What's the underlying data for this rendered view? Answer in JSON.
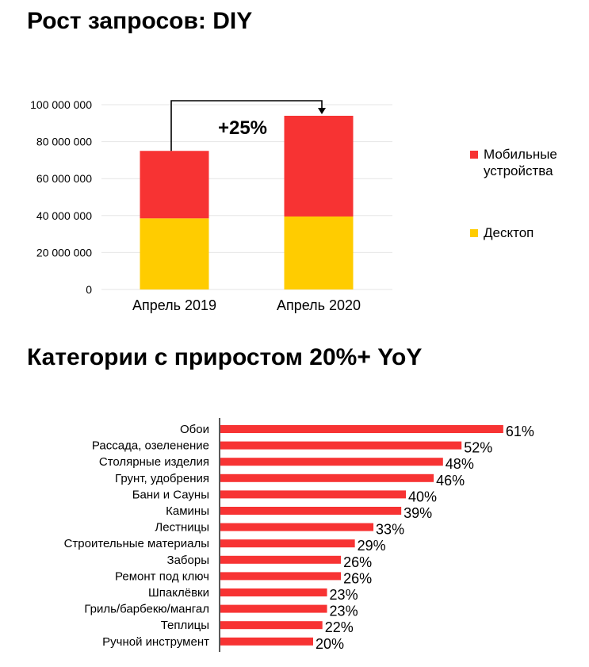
{
  "charts": {
    "stacked": {
      "title": "Рост запросов: DIY",
      "growth_label": "+25%",
      "colors": {
        "mobile": "#f73333",
        "desktop": "#ffcc00"
      }
    },
    "bars": {
      "title": "Категории с приростом 20%+ YoY",
      "color": "#f73333"
    }
  },
  "chart_data": [
    {
      "type": "bar",
      "stacked": true,
      "title": "Рост запросов: DIY",
      "categories": [
        "Апрель 2019",
        "Апрель 2020"
      ],
      "series": [
        {
          "name": "Десктоп",
          "values": [
            38500000,
            39500000
          ]
        },
        {
          "name": "Мобильные устройства",
          "values": [
            36500000,
            54500000
          ]
        }
      ],
      "ylim": [
        0,
        100000000
      ],
      "yticks": [
        "0",
        "20 000 000",
        "40 000 000",
        "60 000 000",
        "80 000 000",
        "100 000 000"
      ],
      "grid": true,
      "legend": "right",
      "annotation": "+25%"
    },
    {
      "type": "bar",
      "orientation": "horizontal",
      "title": "Категории с приростом 20%+ YoY",
      "categories": [
        "Обои",
        "Рассада, озеленение",
        "Столярные изделия",
        "Грунт, удобрения",
        "Бани и Сауны",
        "Камины",
        "Лестницы",
        "Строительные материалы",
        "Заборы",
        "Ремонт под ключ",
        "Шпаклёвки",
        "Гриль/барбекю/мангал",
        "Теплицы",
        "Ручной инструмент"
      ],
      "values": [
        61,
        52,
        48,
        46,
        40,
        39,
        33,
        29,
        26,
        26,
        23,
        23,
        22,
        20
      ],
      "labels": [
        "61%",
        "52%",
        "48%",
        "46%",
        "40%",
        "39%",
        "33%",
        "29%",
        "26%",
        "26%",
        "23%",
        "23%",
        "22%",
        "20%"
      ],
      "unit": "%"
    }
  ]
}
